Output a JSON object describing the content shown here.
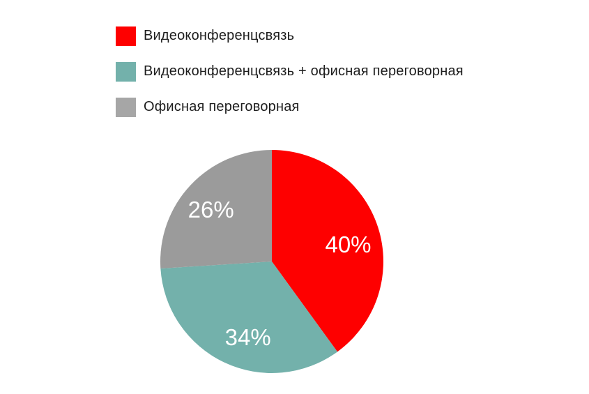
{
  "legend": {
    "items": [
      {
        "label": "Видеоконференцсвязь",
        "color": "#fe0000"
      },
      {
        "label": "Видеоконференцсвязь + офисная переговорная",
        "color": "#73b1ab"
      },
      {
        "label": "Офисная переговорная",
        "color": "#a6a6a6"
      }
    ]
  },
  "chart_data": {
    "type": "pie",
    "categories": [
      "Видеоконференцсвязь",
      "Видеоконференцсвязь + офисная переговорная",
      "Офисная переговорная"
    ],
    "values": [
      40,
      34,
      26
    ],
    "slice_labels": [
      "40%",
      "34%",
      "26%"
    ],
    "colors": [
      "#fe0000",
      "#73b1ab",
      "#9b9b9b"
    ],
    "unit": "%",
    "start_angle_deg": 0,
    "direction": "clockwise",
    "legend_position": "top-left",
    "slice_label_color": "#ffffff",
    "label_radius_fraction": 0.68
  }
}
